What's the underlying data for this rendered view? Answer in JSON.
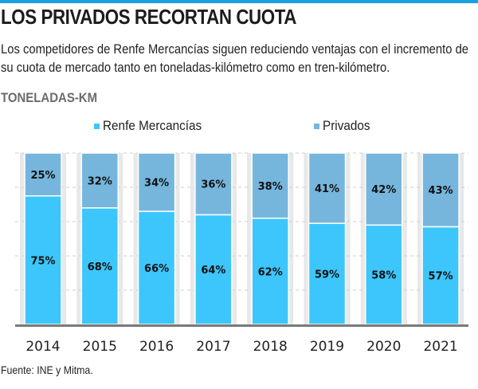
{
  "header": {
    "title": "LOS PRIVADOS RECORTAN CUOTA",
    "subtitle": "Los competidores de Renfe Mercancías siguen reduciendo ventajas con el incremento de su cuota de mercado tanto en toneladas-kilómetro como en tren-kilómetro.",
    "section_label": "TONELADAS-KM"
  },
  "colors": {
    "accent_bar": "#1a9fe0",
    "renfe": "#3dc6fb",
    "privados": "#76b6dd",
    "baseline": "#7a7a7a",
    "grid": "#cfcfcf"
  },
  "footer": {
    "source": "Fuente: INE y Mitma."
  },
  "chart_data": {
    "type": "bar",
    "stacked": true,
    "percent": true,
    "title": "TONELADAS-KM",
    "xlabel": "",
    "ylabel": "",
    "ylim": [
      0,
      100
    ],
    "grid": true,
    "legend_position": "top",
    "categories": [
      "2014",
      "2015",
      "2016",
      "2017",
      "2018",
      "2019",
      "2020",
      "2021"
    ],
    "series": [
      {
        "name": "Renfe Mercancías",
        "color": "#3dc6fb",
        "values": [
          75,
          68,
          66,
          64,
          62,
          59,
          58,
          57
        ]
      },
      {
        "name": "Privados",
        "color": "#76b6dd",
        "values": [
          25,
          32,
          34,
          36,
          38,
          41,
          42,
          43
        ]
      }
    ],
    "data_label_suffix": "%"
  }
}
